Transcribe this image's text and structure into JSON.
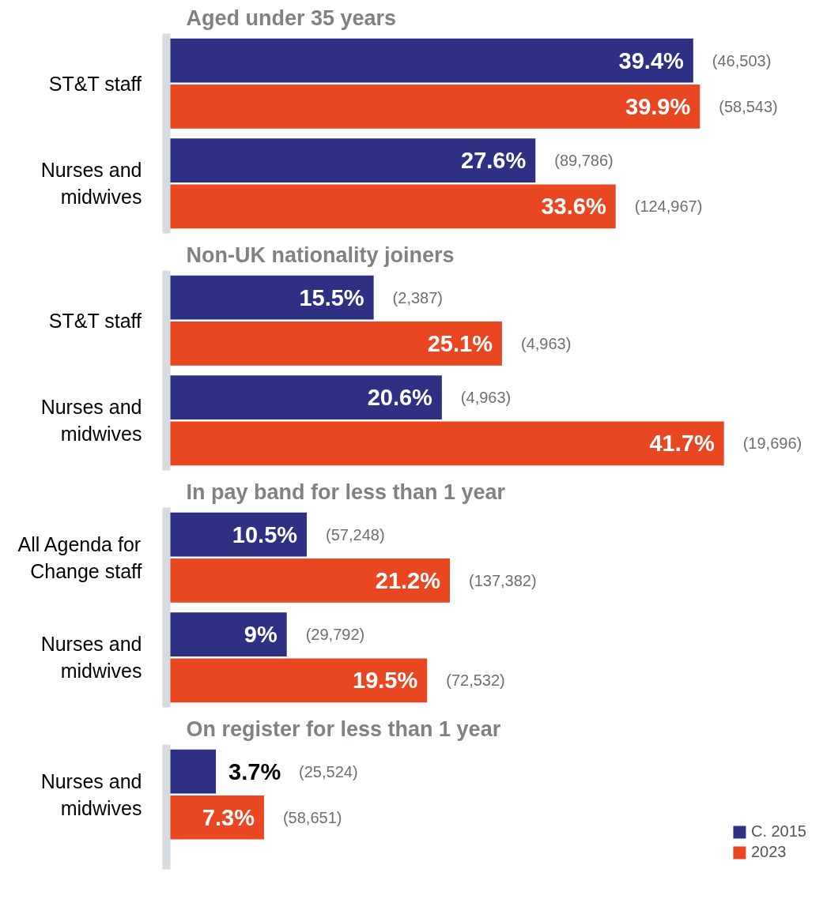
{
  "chart_data": [
    {
      "type": "bar",
      "orientation": "horizontal",
      "title": "Aged under 35 years",
      "categories": [
        "ST&T staff",
        "Nurses and midwives"
      ],
      "tick_labels": "y",
      "series": [
        {
          "color": "#2e3084",
          "values": [
            39.4,
            27.6
          ],
          "value_labels": [
            "39.4%",
            "27.6%"
          ]
        },
        {
          "color": "#e84722",
          "values": [
            39.9,
            33.6
          ],
          "value_labels": [
            "39.9%",
            "33.6%"
          ]
        }
      ],
      "annotations": [
        "(46,503)",
        "(58,543)",
        "(89,786)",
        "(124,967)"
      ]
    },
    {
      "type": "bar",
      "orientation": "horizontal",
      "title": "Non-UK nationality joiners",
      "categories": [
        "ST&T staff",
        "Nurses and midwives"
      ],
      "tick_labels": "y",
      "series": [
        {
          "color": "#2e3084",
          "values": [
            15.5,
            20.6
          ],
          "value_labels": [
            "15.5%",
            "20.6%"
          ]
        },
        {
          "color": "#e84722",
          "values": [
            25.1,
            41.7
          ],
          "value_labels": [
            "25.1%",
            "41.7%"
          ]
        }
      ],
      "annotations": [
        "(2,387)",
        "(4,963)",
        "(4,963)",
        "(19,696)"
      ]
    },
    {
      "type": "bar",
      "orientation": "horizontal",
      "title": "In pay band for less than 1 year",
      "categories": [
        "All Agenda for Change staff",
        "Nurses and midwives"
      ],
      "tick_labels": "y",
      "series": [
        {
          "color": "#2e3084",
          "values": [
            10.5,
            9
          ],
          "value_labels": [
            "10.5%",
            "9%"
          ]
        },
        {
          "color": "#e84722",
          "values": [
            21.2,
            19.5
          ],
          "value_labels": [
            "21.2%",
            "19.5%"
          ]
        }
      ],
      "annotations": [
        "(57,248)",
        "(137,382)",
        "(29,792)",
        "(72,532)"
      ]
    },
    {
      "type": "bar",
      "orientation": "horizontal",
      "title": "On register for less than 1 year",
      "categories": [
        "Nurses and midwives"
      ],
      "tick_labels": "y",
      "legend": "bottom right",
      "series": [
        {
          "name": "C. 2015",
          "color": "#2e3084",
          "values": [
            3.7
          ],
          "value_labels": [
            "3.7%"
          ]
        },
        {
          "name": "2023",
          "color": "#e84722",
          "values": [
            7.3
          ],
          "value_labels": [
            "7.3%"
          ]
        }
      ],
      "annotations": [
        "(25,524)",
        "(58,651)"
      ]
    }
  ]
}
